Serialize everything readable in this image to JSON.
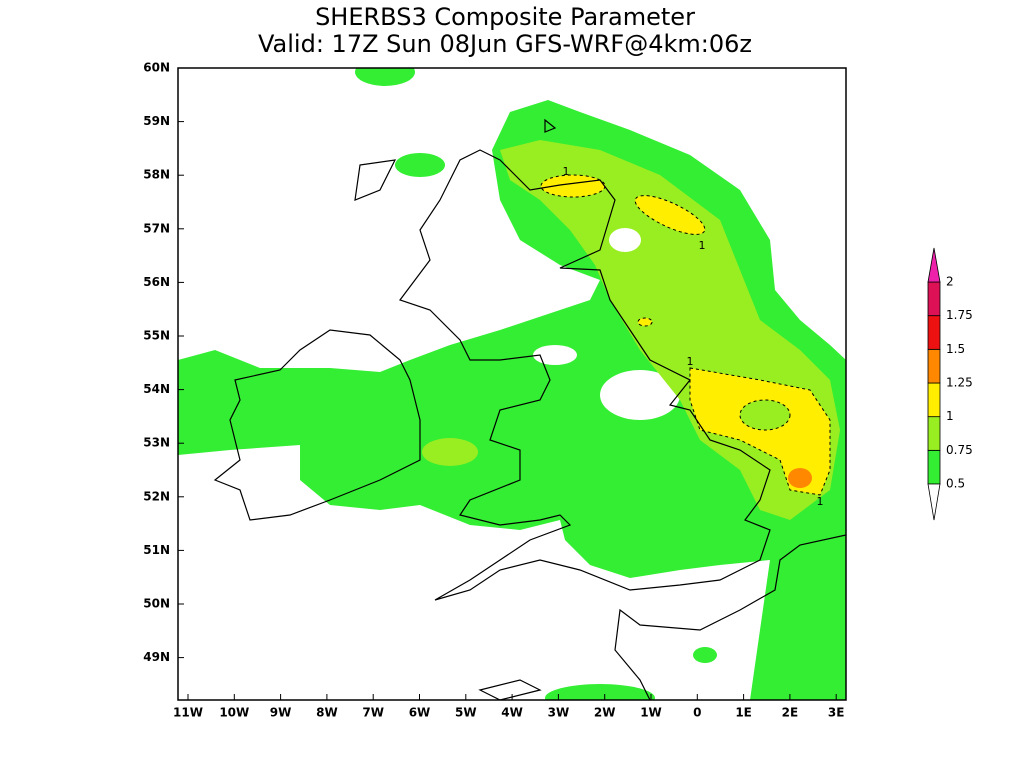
{
  "title": "SHERBS3 Composite Parameter",
  "subtitle": "Valid: 17Z Sun 08Jun GFS-WRF@4km:06z",
  "lat_labels": [
    "60N",
    "59N",
    "58N",
    "57N",
    "56N",
    "55N",
    "54N",
    "53N",
    "52N",
    "51N",
    "50N",
    "49N"
  ],
  "lon_labels": [
    "11W",
    "10W",
    "9W",
    "8W",
    "7W",
    "6W",
    "5W",
    "4W",
    "3W",
    "2W",
    "1W",
    "0",
    "1E",
    "2E",
    "3E"
  ],
  "contour_labels": [
    "1",
    "1",
    "1",
    "1"
  ],
  "colorbar": {
    "levels": [
      0.5,
      0.75,
      1,
      1.25,
      1.5,
      1.75,
      2
    ],
    "colors": [
      "#33ee33",
      "#99ee22",
      "#ffee00",
      "#ff8800",
      "#ee1111",
      "#dd1155"
    ],
    "under_color": "#ffffff",
    "over_color": "#ee22aa"
  }
}
